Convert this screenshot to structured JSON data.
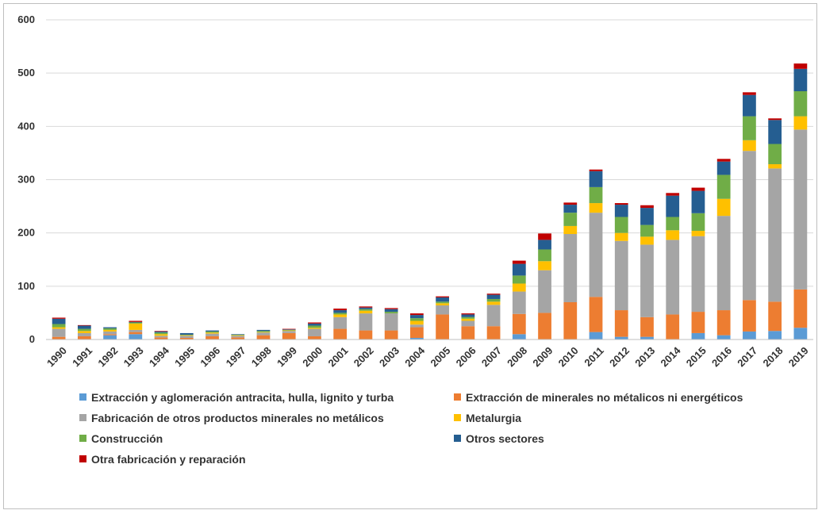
{
  "chart_data": {
    "type": "bar",
    "stacked": true,
    "categories": [
      "1990",
      "1991",
      "1992",
      "1993",
      "1994",
      "1995",
      "1996",
      "1997",
      "1998",
      "1999",
      "2000",
      "2001",
      "2002",
      "2003",
      "2004",
      "2005",
      "2006",
      "2007",
      "2008",
      "2009",
      "2010",
      "2011",
      "2012",
      "2013",
      "2014",
      "2015",
      "2016",
      "2017",
      "2018",
      "2019"
    ],
    "ylim": [
      0,
      600
    ],
    "yticks": [
      0,
      100,
      200,
      300,
      400,
      500,
      600
    ],
    "grid": true,
    "legend_position": "bottom",
    "series": [
      {
        "name": "Extracción y aglomeración antracita, hulla, lignito y turba",
        "color": "#5b9bd5",
        "values": [
          0,
          0,
          8,
          10,
          0,
          0,
          0,
          0,
          0,
          0,
          0,
          0,
          0,
          0,
          3,
          0,
          0,
          0,
          10,
          0,
          0,
          14,
          5,
          5,
          0,
          12,
          8,
          15,
          16,
          22
        ]
      },
      {
        "name": "Extracción de minerales no métalicos ni energéticos",
        "color": "#ed7d31",
        "values": [
          5,
          6,
          2,
          4,
          4,
          3,
          6,
          4,
          8,
          12,
          6,
          20,
          17,
          17,
          20,
          47,
          25,
          25,
          38,
          50,
          70,
          66,
          50,
          37,
          47,
          40,
          47,
          59,
          55,
          72
        ]
      },
      {
        "name": "Fabricación de otros productos minerales no metálicos",
        "color": "#a5a5a5",
        "values": [
          15,
          6,
          5,
          4,
          3,
          4,
          5,
          3,
          5,
          4,
          14,
          22,
          32,
          32,
          5,
          17,
          10,
          40,
          42,
          80,
          128,
          158,
          130,
          136,
          140,
          142,
          177,
          280,
          250,
          300
        ]
      },
      {
        "name": "Metalurgia",
        "color": "#ffc000",
        "values": [
          3,
          4,
          3,
          12,
          3,
          1,
          2,
          1,
          1,
          1,
          2,
          5,
          5,
          0,
          7,
          4,
          4,
          6,
          15,
          17,
          15,
          18,
          15,
          15,
          18,
          10,
          32,
          20,
          8,
          25
        ]
      },
      {
        "name": "Construcción",
        "color": "#70ad47",
        "values": [
          6,
          4,
          3,
          2,
          3,
          1,
          2,
          1,
          2,
          1,
          4,
          3,
          3,
          3,
          5,
          3,
          3,
          5,
          15,
          22,
          25,
          30,
          30,
          22,
          25,
          33,
          45,
          45,
          38,
          47
        ]
      },
      {
        "name": "Otros sectores",
        "color": "#255e91",
        "values": [
          10,
          6,
          2,
          1,
          2,
          3,
          2,
          1,
          2,
          1,
          4,
          5,
          3,
          5,
          6,
          8,
          5,
          8,
          22,
          18,
          15,
          30,
          23,
          32,
          40,
          42,
          25,
          40,
          45,
          42
        ]
      },
      {
        "name": "Otra fabricación y reparación",
        "color": "#c00000",
        "values": [
          2,
          1,
          0,
          2,
          1,
          0,
          0,
          0,
          0,
          1,
          2,
          3,
          2,
          2,
          3,
          2,
          2,
          2,
          6,
          12,
          4,
          3,
          3,
          5,
          5,
          6,
          5,
          5,
          3,
          10
        ]
      }
    ]
  }
}
